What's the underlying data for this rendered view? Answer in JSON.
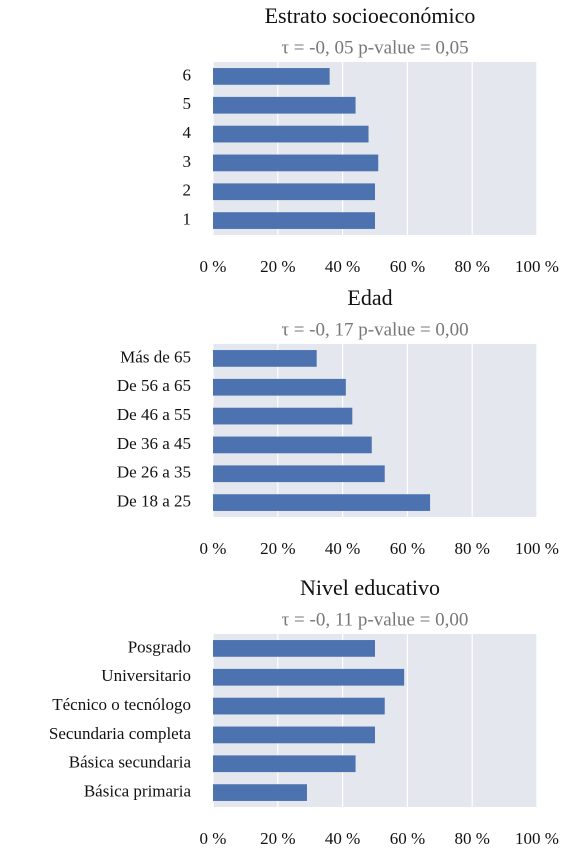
{
  "chart_data": [
    {
      "type": "barh",
      "title": "Estrato socioeconómico",
      "subtitle": "τ = -0, 05 p-value = 0,05",
      "categories": [
        "6",
        "5",
        "4",
        "3",
        "2",
        "1"
      ],
      "values": [
        36,
        44,
        48,
        51,
        50,
        50
      ],
      "color": "#4c72b0",
      "xlim": [
        0,
        100
      ],
      "xticks": [
        {
          "value": 0,
          "label": "0 %"
        },
        {
          "value": 20,
          "label": "20 %"
        },
        {
          "value": 40,
          "label": "40 %"
        },
        {
          "value": 60,
          "label": "60 %"
        },
        {
          "value": 80,
          "label": "80 %"
        },
        {
          "value": 100,
          "label": "100 %"
        }
      ],
      "grid": true
    },
    {
      "type": "barh",
      "title": "Edad",
      "subtitle": "τ = -0, 17 p-value = 0,00",
      "categories": [
        "Más de 65",
        "De 56 a 65",
        "De 46 a 55",
        "De 36 a 45",
        "De 26 a 35",
        "De 18 a 25"
      ],
      "values": [
        32,
        41,
        43,
        49,
        53,
        67
      ],
      "color": "#4c72b0",
      "xlim": [
        0,
        100
      ],
      "xticks": [
        {
          "value": 0,
          "label": "0 %"
        },
        {
          "value": 20,
          "label": "20 %"
        },
        {
          "value": 40,
          "label": "40 %"
        },
        {
          "value": 60,
          "label": "60 %"
        },
        {
          "value": 80,
          "label": "80 %"
        },
        {
          "value": 100,
          "label": "100 %"
        }
      ],
      "grid": true
    },
    {
      "type": "barh",
      "title": "Nivel educativo",
      "subtitle": "τ = -0, 11 p-value = 0,00",
      "categories": [
        "Posgrado",
        "Universitario",
        "Técnico o tecnólogo",
        "Secundaria completa",
        "Básica secundaria",
        "Básica primaria"
      ],
      "values": [
        50,
        59,
        53,
        50,
        44,
        29
      ],
      "color": "#4c72b0",
      "xlim": [
        0,
        100
      ],
      "xticks": [
        {
          "value": 0,
          "label": "0 %"
        },
        {
          "value": 20,
          "label": "20 %"
        },
        {
          "value": 40,
          "label": "40 %"
        },
        {
          "value": 60,
          "label": "60 %"
        },
        {
          "value": 80,
          "label": "80 %"
        },
        {
          "value": 100,
          "label": "100 %"
        }
      ],
      "grid": true
    }
  ]
}
